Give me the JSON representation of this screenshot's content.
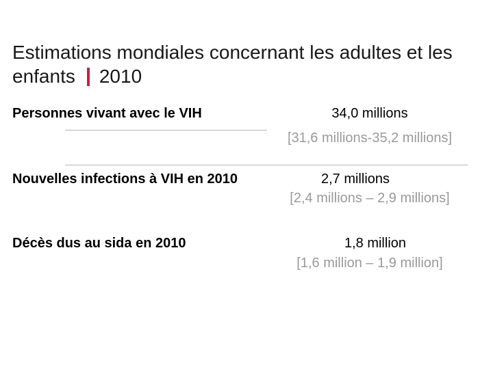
{
  "slide": {
    "title": {
      "line1": "Estimations mondiales concernant les adultes et les",
      "line2_word": "enfants",
      "year": "2010"
    },
    "stats": [
      {
        "label": "Personnes vivant avec le VIH",
        "value": "34,0 millions",
        "range": "[31,6 millions-35,2 millions]"
      },
      {
        "label": "Nouvelles infections à VIH en 2010",
        "value": "2,7 millions",
        "range": "[2,4 millions – 2,9 millions]"
      },
      {
        "label": "Décès dus au sida en 2010",
        "value": "1,8 million",
        "range": "[1,6 million – 1,9 million]"
      }
    ],
    "colors": {
      "accent_bar": "#c32148",
      "muted_text": "#9a9a9a",
      "divider": "#b3b3b3"
    }
  }
}
